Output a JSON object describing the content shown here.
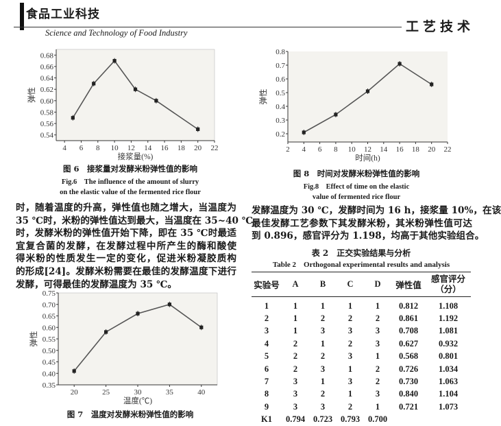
{
  "header": {
    "logo": "食品工业科技",
    "journal": "Science and Technology of Food Industry",
    "section": "工艺技术"
  },
  "figures": {
    "fig6": {
      "caption_cn": "图 6　接浆量对发酵米粉弹性值的影响",
      "caption_en_1": "Fig.6　The influence of the amount of slurry",
      "caption_en_2": "on the elastic value of the fermented rice flour"
    },
    "fig7": {
      "caption_cn": "图 7　温度对发酵米粉弹性值的影响"
    },
    "fig8": {
      "caption_cn": "图 8　时间对发酵米粉弹性值的影响",
      "caption_en_1": "Fig.8　Effect of time on the elastic",
      "caption_en_2": "value of fermented rice flour"
    }
  },
  "chart_data": [
    {
      "id": "fig6",
      "type": "line",
      "xlabel": "接浆量(%)",
      "ylabel": "弹性",
      "x": [
        5,
        7.5,
        10,
        12.5,
        15,
        20
      ],
      "values": [
        0.57,
        0.63,
        0.67,
        0.62,
        0.6,
        0.55
      ],
      "error_bars": true,
      "xlim": [
        3,
        22
      ],
      "ylim": [
        0.53,
        0.69
      ],
      "xticks": [
        4,
        6,
        8,
        10,
        12,
        14,
        16,
        18,
        20,
        22
      ],
      "yticks": [
        0.54,
        0.56,
        0.58,
        0.6,
        0.62,
        0.64,
        0.66,
        0.68
      ],
      "ytick_labels": [
        "0.54",
        "0.56",
        "0.58",
        "0.60",
        "0.62",
        "0.64",
        "0.66",
        "0.68"
      ],
      "grid": false
    },
    {
      "id": "fig8",
      "type": "line",
      "xlabel": "时间(h)",
      "ylabel": "弹性",
      "x": [
        4,
        8,
        12,
        16,
        20
      ],
      "values": [
        0.21,
        0.34,
        0.51,
        0.71,
        0.56
      ],
      "error_bars": true,
      "xlim": [
        2,
        22
      ],
      "ylim": [
        0.14,
        0.8
      ],
      "xticks": [
        2,
        4,
        6,
        8,
        10,
        12,
        14,
        16,
        18,
        20,
        22
      ],
      "yticks": [
        0.2,
        0.3,
        0.4,
        0.5,
        0.6,
        0.7,
        0.8
      ],
      "ytick_labels": [
        "0.2",
        "0.3",
        "0.4",
        "0.5",
        "0.6",
        "0.7",
        "0.8"
      ],
      "grid": false
    },
    {
      "id": "fig7",
      "type": "line",
      "xlabel": "温度(℃)",
      "ylabel": "弹性",
      "x": [
        20,
        25,
        30,
        35,
        40
      ],
      "values": [
        0.41,
        0.58,
        0.66,
        0.7,
        0.6
      ],
      "error_bars": true,
      "xlim": [
        17.5,
        42.5
      ],
      "ylim": [
        0.35,
        0.75
      ],
      "xticks": [
        20,
        25,
        30,
        35,
        40
      ],
      "yticks": [
        0.35,
        0.4,
        0.45,
        0.5,
        0.55,
        0.6,
        0.65,
        0.7,
        0.75
      ],
      "ytick_labels": [
        "0.35",
        "0.40",
        "0.45",
        "0.50",
        "0.55",
        "0.60",
        "0.65",
        "0.70",
        "0.75"
      ],
      "grid": false
    }
  ],
  "left_text": [
    "时，随着温度的升高，弹性值也随之增大，当温度为",
    "35 ℃时，米粉的弹性值达到最大，当温度在 35~40 ℃",
    "时，发酵米粉的弹性值开始下降，即在 35 ℃时最适",
    "宜复合菌的发酵，在发酵过程中所产生的酶和酸使",
    "得米粉的性质发生一定的变化，促进米粉凝胶质构",
    "的形成[24]。发酵米粉需要在最佳的发酵温度下进行",
    "发酵，可得最佳的发酵温度为 35 ℃。"
  ],
  "right_text": [
    "发酵温度为 30 ℃，发酵时间为 16 h，接浆量 10%，在该",
    "最佳发酵工艺参数下其发酵米粉，其米粉弹性值可达",
    "到 0.896，感官评分为 1.198，均高于其他实验组合。"
  ],
  "table": {
    "title_cn": "表 2　正交实验结果与分析",
    "title_en": "Table 2　Orthogonal experimental results and analysis",
    "headers": [
      "实验号",
      "A",
      "B",
      "C",
      "D",
      "弹性值",
      "感官评分（分）"
    ],
    "rows": [
      [
        "1",
        "1",
        "1",
        "1",
        "1",
        "0.812",
        "1.108"
      ],
      [
        "2",
        "1",
        "2",
        "2",
        "2",
        "0.861",
        "1.192"
      ],
      [
        "3",
        "1",
        "3",
        "3",
        "3",
        "0.708",
        "1.081"
      ],
      [
        "4",
        "2",
        "1",
        "2",
        "3",
        "0.627",
        "0.932"
      ],
      [
        "5",
        "2",
        "2",
        "3",
        "1",
        "0.568",
        "0.801"
      ],
      [
        "6",
        "2",
        "3",
        "1",
        "2",
        "0.726",
        "1.034"
      ],
      [
        "7",
        "3",
        "1",
        "3",
        "2",
        "0.730",
        "1.063"
      ],
      [
        "8",
        "3",
        "2",
        "1",
        "3",
        "0.840",
        "1.104"
      ],
      [
        "9",
        "3",
        "3",
        "2",
        "1",
        "0.721",
        "1.073"
      ],
      [
        "K1",
        "0.794",
        "0.723",
        "0.793",
        "0.700",
        "",
        ""
      ]
    ]
  }
}
